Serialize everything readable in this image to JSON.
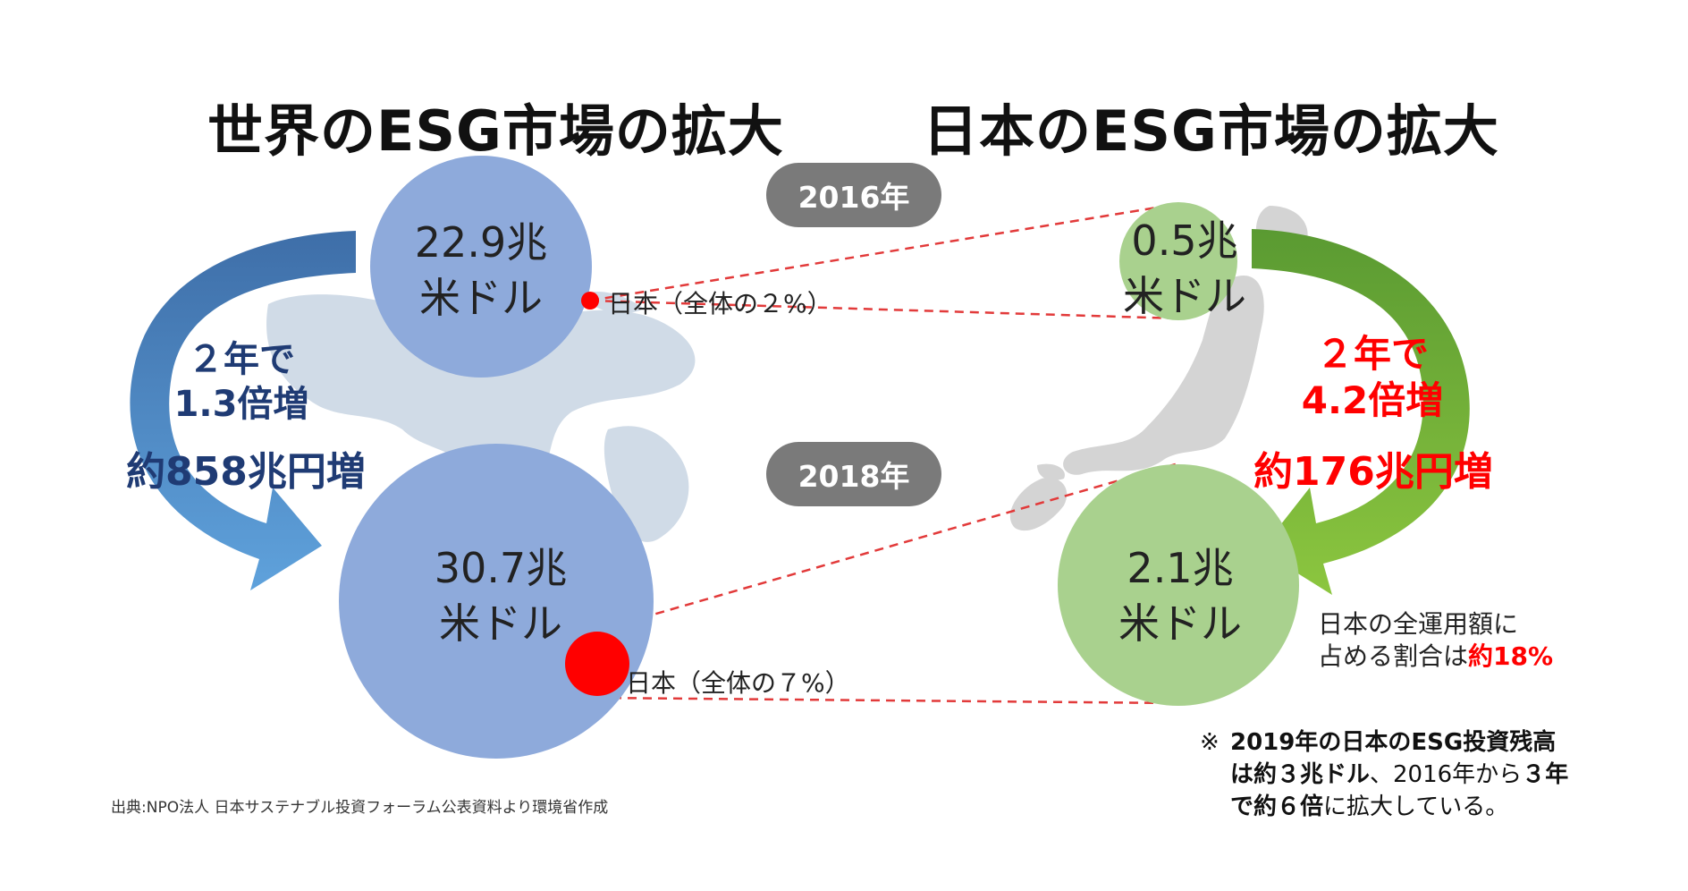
{
  "titles": {
    "world": "世界のESG市場の拡大",
    "japan": "日本のESG市場の拡大"
  },
  "years": {
    "y2016": "2016年",
    "y2018": "2018年"
  },
  "world": {
    "value_2016": "22.9兆",
    "unit_2016": "米ドル",
    "value_2018": "30.7兆",
    "unit_2018": "米ドル",
    "growth_line1": "２年で",
    "growth_line2": "1.3倍増",
    "growth_line3": "約858兆円増",
    "japan_share_2016": "日本（全体の２%）",
    "japan_share_2018": "日本（全体の７%）"
  },
  "japan": {
    "value_2016": "0.5兆",
    "unit_2016": "米ドル",
    "value_2018": "2.1兆",
    "unit_2018": "米ドル",
    "growth_line1": "２年で",
    "growth_line2": "4.2倍増",
    "growth_line3": "約176兆円増",
    "ratio_line1": "日本の全運用額に",
    "ratio_line2_prefix": "占める割合は",
    "ratio_line2_value": "約18%"
  },
  "footnote": {
    "mark": "※",
    "line1": "2019年の日本のESG投資残高",
    "line2_a": "は約３兆ドル",
    "line2_b": "、2016年から",
    "line2_c": "３年",
    "line3_a": "で約６倍",
    "line3_b": "に拡大している。"
  },
  "source": "出典:NPO法人 日本サステナブル投資フォーラム公表資料より環境省作成",
  "colors": {
    "world_circle": "#8eaadb",
    "japan_circle": "#a9d18e",
    "world_arrow": "#4a86c8",
    "japan_arrow": "#70ad47",
    "highlight": "#ff0000",
    "navy_text": "#1f3b74",
    "pill": "#7a7a7a",
    "map": "#d0dbe7"
  }
}
